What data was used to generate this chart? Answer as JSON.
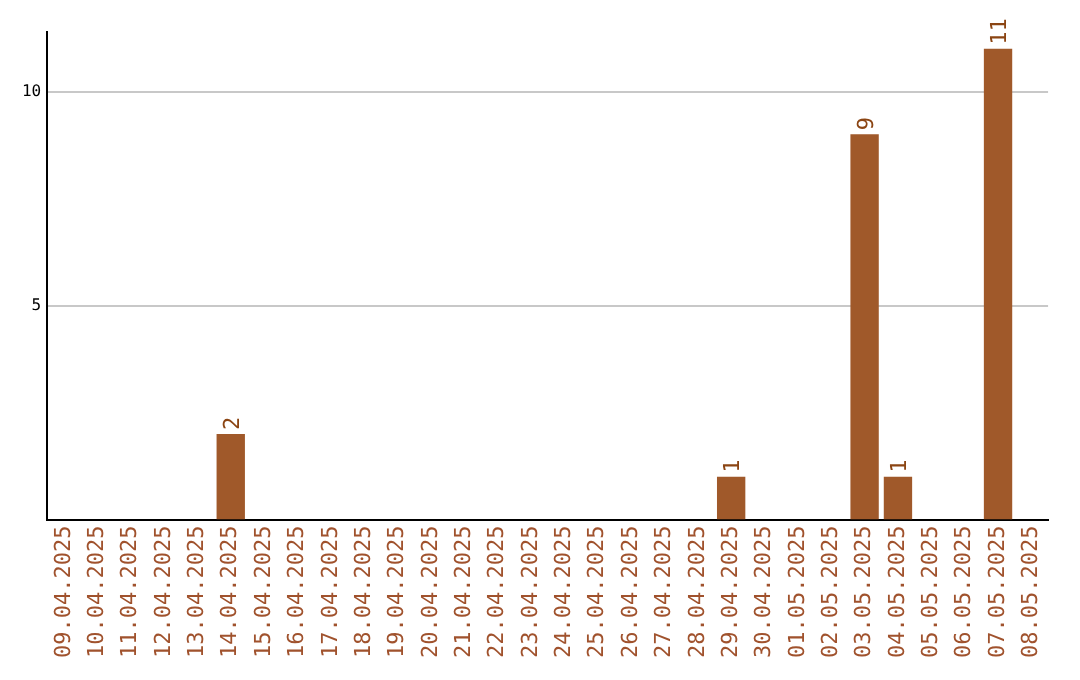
{
  "chart_data": {
    "type": "bar",
    "categories": [
      "09.04.2025",
      "10.04.2025",
      "11.04.2025",
      "12.04.2025",
      "13.04.2025",
      "14.04.2025",
      "15.04.2025",
      "16.04.2025",
      "17.04.2025",
      "18.04.2025",
      "19.04.2025",
      "20.04.2025",
      "21.04.2025",
      "22.04.2025",
      "23.04.2025",
      "24.04.2025",
      "25.04.2025",
      "26.04.2025",
      "27.04.2025",
      "28.04.2025",
      "29.04.2025",
      "30.04.2025",
      "01.05.2025",
      "02.05.2025",
      "03.05.2025",
      "04.05.2025",
      "05.05.2025",
      "06.05.2025",
      "07.05.2025",
      "08.05.2025"
    ],
    "values": [
      0,
      0,
      0,
      0,
      0,
      2,
      0,
      0,
      0,
      0,
      0,
      0,
      0,
      0,
      0,
      0,
      0,
      0,
      0,
      0,
      1,
      0,
      0,
      0,
      9,
      1,
      0,
      0,
      11,
      0
    ],
    "color": "#a0592a",
    "value_labels": [
      null,
      null,
      null,
      null,
      null,
      "2",
      null,
      null,
      null,
      null,
      null,
      null,
      null,
      null,
      null,
      null,
      null,
      null,
      null,
      null,
      "1",
      null,
      null,
      null,
      "9",
      "1",
      null,
      null,
      "11",
      null
    ],
    "ylim": [
      0,
      11.4
    ],
    "yticks": [
      5,
      10
    ],
    "grid": "y"
  }
}
